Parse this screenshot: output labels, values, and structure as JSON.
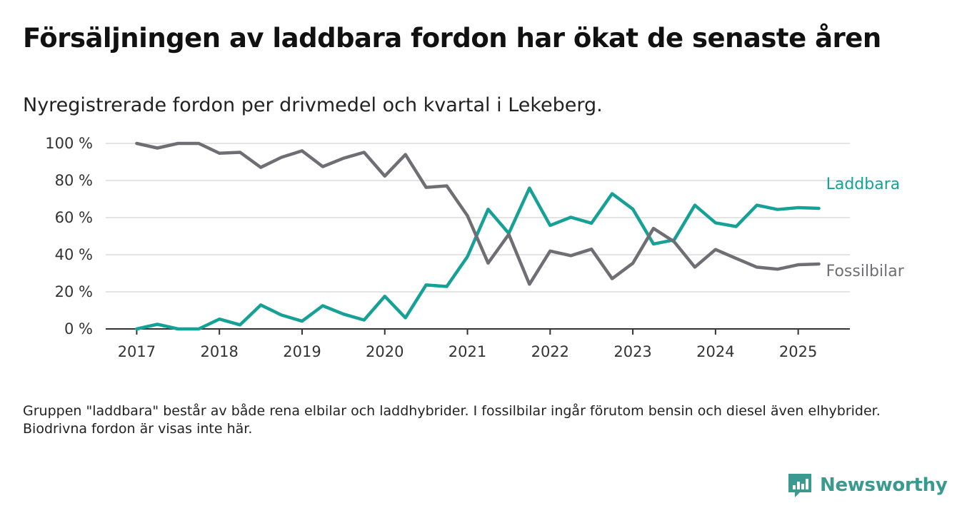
{
  "title": "Försäljningen av laddbara fordon har ökat de senaste åren",
  "subtitle": "Nyregistrerade fordon per drivmedel och kvartal i Lekeberg.",
  "note": "Gruppen \"laddbara\" består av både rena elbilar och laddhybrider. I fossilbilar ingår förutom bensin och diesel även elhybrider. Biodrivna fordon är visas inte här.",
  "brand": {
    "name": "Newsworthy",
    "icon": "newsworthy-logo-icon",
    "color": "#3a9a8f"
  },
  "chart_data": {
    "type": "line",
    "x_ticks": [
      "2017",
      "2018",
      "2019",
      "2020",
      "2021",
      "2022",
      "2023",
      "2024",
      "2025"
    ],
    "y_ticks": [
      "0 %",
      "20 %",
      "40 %",
      "60 %",
      "80 %",
      "100 %"
    ],
    "ylim": [
      0,
      100
    ],
    "xlim": [
      2016.625,
      2025.625
    ],
    "grid": true,
    "x": [
      2017.0,
      2017.25,
      2017.5,
      2017.75,
      2018.0,
      2018.25,
      2018.5,
      2018.75,
      2019.0,
      2019.25,
      2019.5,
      2019.75,
      2020.0,
      2020.25,
      2020.5,
      2020.75,
      2021.0,
      2021.25,
      2021.5,
      2021.75,
      2022.0,
      2022.25,
      2022.5,
      2022.75,
      2023.0,
      2023.25,
      2023.5,
      2023.75,
      2024.0,
      2024.25,
      2024.5,
      2024.75,
      2025.0,
      2025.25
    ],
    "series": [
      {
        "name": "Laddbara",
        "color": "#16a197",
        "values": [
          0,
          2.5,
          0,
          0,
          5.3,
          2.2,
          12.9,
          7.5,
          4.2,
          12.5,
          8.0,
          4.8,
          17.6,
          6.0,
          23.7,
          22.9,
          39.0,
          64.5,
          51.5,
          75.9,
          55.8,
          60.2,
          57.0,
          72.9,
          64.6,
          45.8,
          48.0,
          66.7,
          57.2,
          55.2,
          66.7,
          64.4,
          65.4,
          65.0
        ]
      },
      {
        "name": "Fossilbilar",
        "color": "#6f6e74",
        "values": [
          100,
          97.5,
          100,
          100,
          94.7,
          95.2,
          87.1,
          92.5,
          96.0,
          87.5,
          92.0,
          95.2,
          82.4,
          94.0,
          76.3,
          77.1,
          61.0,
          35.5,
          51.0,
          24.1,
          42.0,
          39.5,
          43.0,
          27.1,
          35.4,
          54.2,
          47.0,
          33.3,
          42.8,
          38.0,
          33.3,
          32.2,
          34.6,
          35.0
        ]
      }
    ]
  }
}
